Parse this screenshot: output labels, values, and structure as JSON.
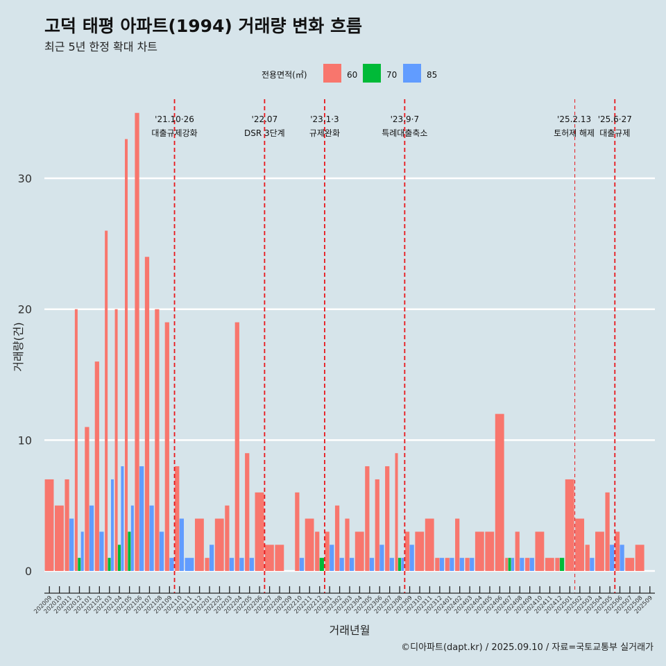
{
  "title": "고덕 태평 아파트(1994) 거래량 변화 흐름",
  "subtitle": "최근 5년 한정 확대 차트",
  "caption": "©디아파트(dapt.kr) / 2025.09.10 / 자료=국토교통부 실거래가",
  "chart_data": {
    "type": "bar",
    "xlabel": "거래년월",
    "ylabel": "거래량(건)",
    "ylim": [
      0,
      37
    ],
    "yticks": [
      0,
      10,
      20,
      30
    ],
    "grid": true,
    "legend": {
      "title": "전용면적(㎡)",
      "position": "top",
      "entries": [
        {
          "name": "60",
          "color": "#f8766d"
        },
        {
          "name": "70",
          "color": "#00ba38"
        },
        {
          "name": "85",
          "color": "#619cff"
        }
      ]
    },
    "categories": [
      "202009",
      "202010",
      "202011",
      "202012",
      "202101",
      "202102",
      "202103",
      "202104",
      "202105",
      "202106",
      "202107",
      "202108",
      "202109",
      "202110",
      "202111",
      "202112",
      "202201",
      "202202",
      "202203",
      "202204",
      "202205",
      "202206",
      "202207",
      "202208",
      "202209",
      "202210",
      "202211",
      "202212",
      "202301",
      "202302",
      "202303",
      "202304",
      "202305",
      "202306",
      "202307",
      "202308",
      "202309",
      "202310",
      "202311",
      "202312",
      "202401",
      "202402",
      "202403",
      "202404",
      "202405",
      "202406",
      "202407",
      "202408",
      "202409",
      "202410",
      "202411",
      "202412",
      "202501",
      "202502",
      "202503",
      "202504",
      "202505",
      "202506",
      "202507",
      "202508",
      "202509"
    ],
    "series": [
      {
        "name": "60",
        "color": "#f8766d",
        "values": [
          7,
          5,
          7,
          20,
          11,
          16,
          26,
          20,
          33,
          35,
          24,
          20,
          19,
          8,
          0,
          4,
          1,
          4,
          5,
          19,
          9,
          6,
          2,
          2,
          0,
          6,
          4,
          3,
          3,
          5,
          4,
          3,
          8,
          7,
          8,
          9,
          3,
          3,
          4,
          1,
          1,
          4,
          1,
          3,
          3,
          12,
          1,
          3,
          1,
          3,
          1,
          1,
          7,
          4,
          2,
          3,
          6,
          3,
          1,
          2,
          0
        ]
      },
      {
        "name": "70",
        "color": "#00ba38",
        "values": [
          0,
          0,
          0,
          1,
          0,
          0,
          1,
          2,
          3,
          0,
          0,
          0,
          0,
          0,
          0,
          0,
          0,
          0,
          0,
          0,
          0,
          0,
          0,
          0,
          0,
          0,
          0,
          1,
          0,
          0,
          0,
          0,
          0,
          0,
          0,
          1,
          0,
          0,
          0,
          0,
          0,
          0,
          0,
          0,
          0,
          0,
          1,
          0,
          0,
          0,
          0,
          1,
          0,
          0,
          0,
          0,
          0,
          0,
          0,
          0,
          0
        ]
      },
      {
        "name": "85",
        "color": "#619cff",
        "values": [
          0,
          0,
          4,
          3,
          5,
          3,
          7,
          8,
          5,
          8,
          5,
          3,
          1,
          4,
          1,
          0,
          2,
          0,
          1,
          1,
          1,
          0,
          0,
          0,
          0,
          1,
          0,
          0,
          2,
          1,
          1,
          0,
          1,
          2,
          1,
          1,
          2,
          0,
          0,
          1,
          1,
          1,
          1,
          0,
          0,
          0,
          1,
          1,
          1,
          0,
          0,
          0,
          0,
          0,
          1,
          0,
          2,
          2,
          0,
          0,
          0
        ]
      }
    ],
    "annotations": [
      {
        "x": "202110",
        "date": "'21.10·26",
        "label": "대출규제강화"
      },
      {
        "x": "202207",
        "date": "'22.07",
        "label": "DSR 3단계"
      },
      {
        "x": "202301",
        "date": "'23.1·3",
        "label": "규제완화"
      },
      {
        "x": "202309",
        "date": "'23.9·7",
        "label": "특례대출축소"
      },
      {
        "x": "202502",
        "date": "'25.2.13",
        "label": "토허제 해제"
      },
      {
        "x": "202506",
        "date": "'25.6·27",
        "label": "대출규제"
      }
    ]
  }
}
